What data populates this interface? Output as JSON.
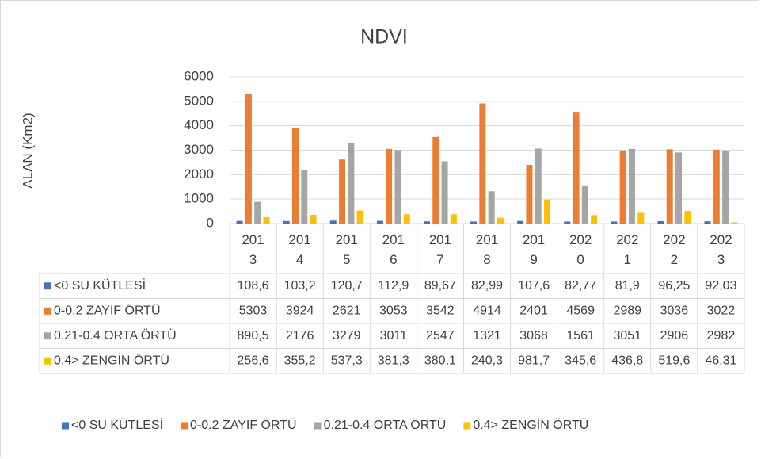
{
  "chart_data": {
    "type": "bar",
    "title": "NDVI",
    "y_label": "ALAN (Km2)",
    "categories": [
      "2013",
      "2014",
      "2015",
      "2016",
      "2017",
      "2018",
      "2019",
      "2020",
      "2021",
      "2022",
      "2023"
    ],
    "series": [
      {
        "name": "<0 SU KÜTLESİ",
        "color": "#4472c4",
        "values": [
          108.6,
          103.2,
          120.7,
          112.9,
          89.67,
          82.99,
          107.6,
          82.77,
          81.9,
          96.25,
          92.03
        ],
        "value_labels": [
          "108,6",
          "103,2",
          "120,7",
          "112,9",
          "89,67",
          "82,99",
          "107,6",
          "82,77",
          "81,9",
          "96,25",
          "92,03"
        ]
      },
      {
        "name": "0-0.2 ZAYIF ÖRTÜ",
        "color": "#ed7d31",
        "values": [
          5303,
          3924,
          2621,
          3053,
          3542,
          4914,
          2401,
          4569,
          2989,
          3036,
          3022
        ]
      },
      {
        "name": "0.21-0.4 ORTA ÖRTÜ",
        "color": "#a5a5a5",
        "values": [
          890.5,
          2176,
          3279,
          3011,
          2547,
          1321,
          3068,
          1561,
          3051,
          2906,
          2982
        ],
        "value_labels": [
          "890,5",
          "2176",
          "3279",
          "3011",
          "2547",
          "1321",
          "3068",
          "1561",
          "3051",
          "2906",
          "2982"
        ]
      },
      {
        "name": "0.4> ZENGİN ÖRTÜ",
        "color": "#ffc000",
        "values": [
          256.6,
          355.2,
          537.3,
          381.3,
          380.1,
          240.3,
          981.7,
          345.6,
          436.8,
          519.6,
          46.31
        ],
        "value_labels": [
          "256,6",
          "355,2",
          "537,3",
          "381,3",
          "380,1",
          "240,3",
          "981,7",
          "345,6",
          "436,8",
          "519,6",
          "46,31"
        ]
      }
    ],
    "ylim": [
      0,
      6000
    ],
    "yticks": [
      0,
      1000,
      2000,
      3000,
      4000,
      5000,
      6000
    ],
    "grid": true,
    "legend": "bottom",
    "data_table": true
  }
}
